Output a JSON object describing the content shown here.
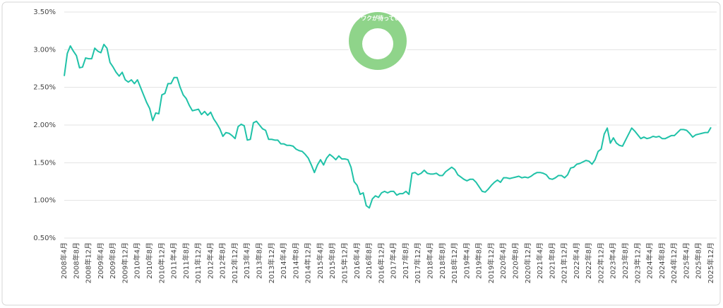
{
  "chart_data": {
    "type": "line",
    "annotations": [
      "ワクワクが待っている"
    ],
    "categories": [
      "2008年4月",
      null,
      null,
      null,
      "2008年8月",
      null,
      null,
      null,
      "2008年12月",
      null,
      null,
      null,
      "2009年4月",
      null,
      null,
      null,
      "2009年8月",
      null,
      null,
      null,
      "2009年12月",
      null,
      null,
      null,
      "2010年4月",
      null,
      null,
      null,
      "2010年8月",
      null,
      null,
      null,
      "2010年12月",
      null,
      null,
      null,
      "2011年4月",
      null,
      null,
      null,
      "2011年8月",
      null,
      null,
      null,
      "2011年12月",
      null,
      null,
      null,
      "2012年4月",
      null,
      null,
      null,
      "2012年8月",
      null,
      null,
      null,
      "2012年12月",
      null,
      null,
      null,
      "2013年4月",
      null,
      null,
      null,
      "2013年8月",
      null,
      null,
      null,
      "2013年12月",
      null,
      null,
      null,
      "2014年4月",
      null,
      null,
      null,
      "2014年8月",
      null,
      null,
      null,
      "2014年12月",
      null,
      null,
      null,
      "2015年4月",
      null,
      null,
      null,
      "2015年8月",
      null,
      null,
      null,
      "2015年12月",
      null,
      null,
      null,
      "2016年4月",
      null,
      null,
      null,
      "2016年8月",
      null,
      null,
      null,
      "2016年12月",
      null,
      null,
      null,
      "2017年4月",
      null,
      null,
      null,
      "2017年8月",
      null,
      null,
      null,
      "2017年12月",
      null,
      null,
      null,
      "2018年4月",
      null,
      null,
      null,
      "2018年8月",
      null,
      null,
      null,
      "2018年12月",
      null,
      null,
      null,
      "2019年4月",
      null,
      null,
      null,
      "2019年8月",
      null,
      null,
      null,
      "2019年12月",
      null,
      null,
      null,
      "2020年4月",
      null,
      null,
      null,
      "2020年8月",
      null,
      null,
      null,
      "2020年12月",
      null,
      null,
      null,
      "2021年4月",
      null,
      null,
      null,
      "2021年8月",
      null,
      null,
      null,
      "2021年12月",
      null,
      null,
      null,
      "2022年4月",
      null,
      null,
      null,
      "2022年8月",
      null,
      null,
      null,
      "2022年12月",
      null,
      null,
      null,
      "2023年4月",
      null,
      null,
      null,
      "2023年8月",
      null,
      null,
      null,
      "2023年12月",
      null,
      null,
      null,
      "2024年4月",
      null,
      null,
      null,
      "2024年8月",
      null,
      null,
      null,
      "2024年12月",
      null,
      null,
      null,
      "2025年4月",
      null,
      null,
      null,
      "2025年8月",
      null,
      null,
      null,
      "2025年12月"
    ],
    "series": [
      {
        "color": "#20c2a8",
        "values": [
          2.65,
          2.95,
          3.05,
          2.98,
          2.92,
          2.76,
          2.77,
          2.89,
          2.88,
          2.88,
          3.02,
          2.98,
          2.96,
          3.07,
          3.02,
          2.83,
          2.77,
          2.7,
          2.65,
          2.7,
          2.6,
          2.57,
          2.6,
          2.55,
          2.6,
          2.5,
          2.4,
          2.3,
          2.22,
          2.06,
          2.16,
          2.15,
          2.4,
          2.42,
          2.55,
          2.55,
          2.63,
          2.63,
          2.5,
          2.4,
          2.35,
          2.26,
          2.19,
          2.2,
          2.21,
          2.14,
          2.18,
          2.13,
          2.17,
          2.08,
          2.02,
          1.95,
          1.85,
          1.9,
          1.89,
          1.86,
          1.82,
          1.98,
          2.01,
          1.99,
          1.8,
          1.81,
          2.03,
          2.05,
          2.0,
          1.95,
          1.93,
          1.81,
          1.81,
          1.8,
          1.8,
          1.75,
          1.75,
          1.73,
          1.73,
          1.72,
          1.68,
          1.66,
          1.65,
          1.61,
          1.56,
          1.47,
          1.37,
          1.47,
          1.54,
          1.47,
          1.56,
          1.61,
          1.58,
          1.54,
          1.59,
          1.55,
          1.55,
          1.54,
          1.44,
          1.25,
          1.2,
          1.08,
          1.1,
          0.93,
          0.9,
          1.02,
          1.06,
          1.04,
          1.1,
          1.12,
          1.1,
          1.12,
          1.12,
          1.07,
          1.09,
          1.09,
          1.12,
          1.08,
          1.36,
          1.37,
          1.34,
          1.36,
          1.4,
          1.36,
          1.35,
          1.35,
          1.36,
          1.33,
          1.33,
          1.38,
          1.41,
          1.44,
          1.41,
          1.34,
          1.31,
          1.28,
          1.26,
          1.28,
          1.28,
          1.24,
          1.18,
          1.12,
          1.11,
          1.15,
          1.2,
          1.24,
          1.27,
          1.24,
          1.3,
          1.3,
          1.29,
          1.3,
          1.31,
          1.32,
          1.3,
          1.31,
          1.3,
          1.32,
          1.35,
          1.37,
          1.37,
          1.36,
          1.34,
          1.29,
          1.28,
          1.3,
          1.33,
          1.33,
          1.3,
          1.34,
          1.43,
          1.44,
          1.48,
          1.49,
          1.51,
          1.53,
          1.52,
          1.48,
          1.54,
          1.65,
          1.68,
          1.88,
          1.96,
          1.76,
          1.83,
          1.76,
          1.73,
          1.72,
          1.8,
          1.88,
          1.96,
          1.92,
          1.87,
          1.82,
          1.84,
          1.82,
          1.83,
          1.85,
          1.84,
          1.85,
          1.82,
          1.82,
          1.84,
          1.86,
          1.86,
          1.9,
          1.94,
          1.94,
          1.93,
          1.89,
          1.84,
          1.87,
          1.88,
          1.89,
          1.9,
          1.9,
          1.97
        ]
      }
    ],
    "ylim": [
      0.5,
      3.5
    ],
    "yticks": [
      {
        "value": 0.5,
        "label": "0.50%"
      },
      {
        "value": 1.0,
        "label": "1.00%"
      },
      {
        "value": 1.5,
        "label": "1.50%"
      },
      {
        "value": 2.0,
        "label": "2.00%"
      },
      {
        "value": 2.5,
        "label": "2.50%"
      },
      {
        "value": 3.0,
        "label": "3.00%"
      },
      {
        "value": 3.5,
        "label": "3.50%"
      }
    ],
    "grid": true
  }
}
